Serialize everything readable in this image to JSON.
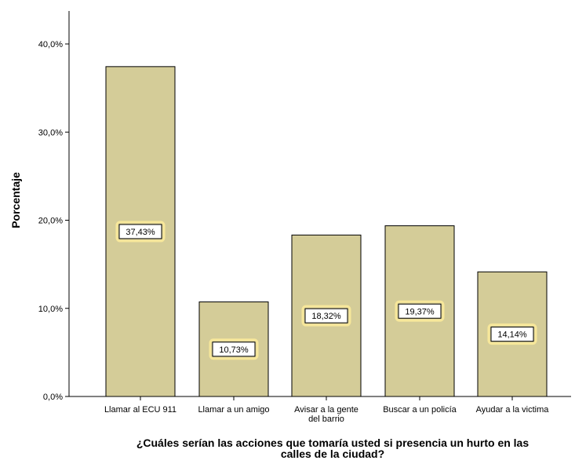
{
  "chart_data": {
    "type": "bar",
    "title": "",
    "xlabel": "¿Cuáles serían las acciones que tomaría usted si presencia un hurto en las calles de la ciudad?",
    "xlabel_lines": [
      "¿Cuáles serían las acciones que tomaría usted si presencia un hurto en las",
      "calles de la ciudad?"
    ],
    "ylabel": "Porcentaje",
    "ylim": [
      0,
      44
    ],
    "yticks": [
      0,
      10,
      20,
      30,
      40
    ],
    "ytick_labels": [
      "0,0%",
      "10,0%",
      "20,0%",
      "30,0%",
      "40,0%"
    ],
    "categories": [
      [
        "Llamar al ECU 911"
      ],
      [
        "Llamar a un amigo"
      ],
      [
        "Avisar a la gente",
        "del barrio"
      ],
      [
        "Buscar a un policía"
      ],
      [
        "Ayudar a la victima"
      ]
    ],
    "values": [
      37.43,
      10.73,
      18.32,
      19.37,
      14.14
    ],
    "data_labels": [
      "37,43%",
      "10,73%",
      "18,32%",
      "19,37%",
      "14,14%"
    ],
    "grid": false,
    "legend": "none",
    "colors": {
      "bar_fill": "#d4cc98",
      "bar_stroke": "#000000",
      "label_halo": "#f7e79a",
      "axis": "#000000",
      "background": "#ffffff"
    }
  }
}
